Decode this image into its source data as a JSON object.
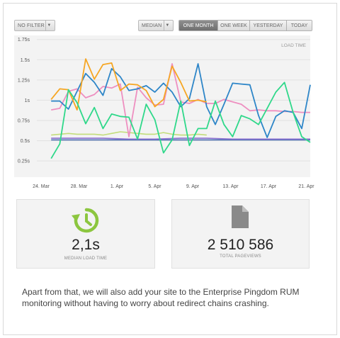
{
  "toolbar": {
    "filter_label": "NO FILTER",
    "median_label": "MEDIAN",
    "time_tabs": [
      {
        "label": "ONE MONTH",
        "active": true
      },
      {
        "label": "ONE WEEK",
        "active": false
      },
      {
        "label": "YESTERDAY",
        "active": false
      },
      {
        "label": "TODAY",
        "active": false
      }
    ]
  },
  "chart_data": {
    "type": "line",
    "title": "LOAD TIME",
    "y_tick_labels": [
      "0.25s",
      "0.5s",
      "0.75s",
      "1s",
      "1.25s",
      "1.5s",
      "1.75s"
    ],
    "ylim": [
      0.05,
      1.8
    ],
    "x_tick_labels": [
      "24. Mar",
      "28. Mar",
      "1. Apr",
      "5. Apr",
      "9. Apr",
      "13. Apr",
      "17. Apr",
      "21. Apr"
    ],
    "xlim": [
      24,
      54
    ],
    "grid": true,
    "series": [
      {
        "color": "#2e86c8",
        "points": [
          [
            25,
            0.99
          ],
          [
            26,
            0.99
          ],
          [
            27,
            0.89
          ],
          [
            29,
            1.33
          ],
          [
            30,
            1.22
          ],
          [
            31,
            1.06
          ],
          [
            32,
            1.39
          ],
          [
            33,
            1.29
          ],
          [
            34,
            1.12
          ],
          [
            35,
            1.14
          ],
          [
            36,
            1.18
          ],
          [
            37,
            1.1
          ],
          [
            38,
            1.21
          ],
          [
            39,
            1.1
          ],
          [
            40,
            0.92
          ],
          [
            41,
            1.02
          ],
          [
            42,
            1.45
          ],
          [
            43,
            0.92
          ],
          [
            44,
            0.7
          ],
          [
            45,
            0.95
          ],
          [
            46,
            1.21
          ],
          [
            47,
            1.2
          ],
          [
            48,
            1.19
          ],
          [
            49,
            0.81
          ],
          [
            50,
            0.54
          ],
          [
            51,
            0.8
          ],
          [
            52,
            0.87
          ],
          [
            53,
            0.85
          ],
          [
            54,
            0.65
          ],
          [
            55,
            1.19
          ]
        ]
      },
      {
        "color": "#f6a623",
        "points": [
          [
            25,
            1.01
          ],
          [
            26,
            1.14
          ],
          [
            27,
            1.13
          ],
          [
            28,
            0.88
          ],
          [
            29,
            1.51
          ],
          [
            30,
            1.26
          ],
          [
            31,
            1.44
          ],
          [
            32,
            1.46
          ],
          [
            33,
            1.12
          ],
          [
            34,
            1.2
          ],
          [
            35,
            1.19
          ],
          [
            36,
            1.12
          ],
          [
            37,
            0.92
          ],
          [
            38,
            1.01
          ],
          [
            39,
            1.42
          ],
          [
            40,
            1.22
          ],
          [
            41,
            0.99
          ],
          [
            42,
            1.0
          ],
          [
            43,
            0.98
          ]
        ]
      },
      {
        "color": "#ee8fc0",
        "points": [
          [
            25,
            0.88
          ],
          [
            26,
            0.9
          ],
          [
            27,
            1.11
          ],
          [
            28,
            1.14
          ],
          [
            29,
            1.03
          ],
          [
            30,
            1.07
          ],
          [
            31,
            1.17
          ],
          [
            32,
            1.15
          ],
          [
            33,
            1.2
          ],
          [
            34,
            0.55
          ],
          [
            35,
            1.16
          ],
          [
            36,
            1.03
          ],
          [
            37,
            0.94
          ],
          [
            38,
            0.95
          ],
          [
            39,
            1.45
          ],
          [
            40,
            0.98
          ],
          [
            41,
            0.96
          ],
          [
            42,
            1.01
          ],
          [
            43,
            0.96
          ],
          [
            44,
            0.96
          ],
          [
            45,
            1.01
          ],
          [
            46,
            0.98
          ],
          [
            47,
            0.95
          ],
          [
            48,
            0.87
          ],
          [
            49,
            0.88
          ],
          [
            50,
            0.87
          ],
          [
            51,
            0.87
          ],
          [
            52,
            0.86
          ],
          [
            53,
            0.86
          ],
          [
            54,
            0.85
          ],
          [
            55,
            0.85
          ]
        ]
      },
      {
        "color": "#2fd88a",
        "points": [
          [
            25,
            0.28
          ],
          [
            26,
            0.46
          ],
          [
            27,
            1.13
          ],
          [
            28,
            0.97
          ],
          [
            29,
            0.71
          ],
          [
            30,
            0.91
          ],
          [
            31,
            0.65
          ],
          [
            32,
            0.83
          ],
          [
            33,
            0.8
          ],
          [
            34,
            0.79
          ],
          [
            35,
            0.52
          ],
          [
            36,
            0.95
          ],
          [
            37,
            0.76
          ],
          [
            38,
            0.35
          ],
          [
            39,
            0.51
          ],
          [
            40,
            0.99
          ],
          [
            41,
            0.44
          ],
          [
            42,
            0.65
          ],
          [
            43,
            0.65
          ],
          [
            44,
            0.99
          ],
          [
            45,
            0.7
          ],
          [
            46,
            0.55
          ],
          [
            47,
            0.81
          ],
          [
            48,
            0.77
          ],
          [
            49,
            0.7
          ],
          [
            50,
            0.9
          ],
          [
            51,
            1.1
          ],
          [
            52,
            1.22
          ],
          [
            53,
            0.85
          ],
          [
            54,
            0.55
          ],
          [
            55,
            0.48
          ]
        ]
      },
      {
        "color": "#c2dd7a",
        "points": [
          [
            25,
            0.57
          ],
          [
            26,
            0.58
          ],
          [
            27,
            0.59
          ],
          [
            28,
            0.58
          ],
          [
            29,
            0.58
          ],
          [
            30,
            0.58
          ],
          [
            31,
            0.57
          ],
          [
            32,
            0.59
          ],
          [
            33,
            0.61
          ],
          [
            34,
            0.6
          ],
          [
            35,
            0.59
          ],
          [
            36,
            0.58
          ],
          [
            37,
            0.58
          ],
          [
            38,
            0.6
          ],
          [
            39,
            0.58
          ],
          [
            40,
            0.57
          ],
          [
            41,
            0.57
          ],
          [
            42,
            0.58
          ],
          [
            43,
            0.57
          ]
        ]
      },
      {
        "color": "#8a6fd0",
        "points": [
          [
            25,
            0.53
          ],
          [
            28,
            0.53
          ],
          [
            31,
            0.53
          ],
          [
            34,
            0.52
          ],
          [
            37,
            0.52
          ],
          [
            40,
            0.53
          ],
          [
            43,
            0.53
          ],
          [
            46,
            0.52
          ],
          [
            49,
            0.52
          ],
          [
            52,
            0.52
          ],
          [
            55,
            0.52
          ]
        ]
      },
      {
        "color": "#4a6fb3",
        "points": [
          [
            25,
            0.51
          ],
          [
            30,
            0.51
          ],
          [
            35,
            0.51
          ],
          [
            40,
            0.51
          ],
          [
            45,
            0.51
          ],
          [
            50,
            0.51
          ],
          [
            55,
            0.51
          ]
        ]
      }
    ]
  },
  "stats": {
    "median_value": "2,1s",
    "median_label": "MEDIAN LOAD TIME",
    "pageviews_value": "2 510 586",
    "pageviews_label": "TOTAL PAGEVIEWS"
  },
  "description": "Apart from that, we will also add your site to the Enterprise Pingdom RUM monitoring without having to worry about redirect chains crashing.",
  "colors": {
    "accent_green": "#8cc63f",
    "doc_icon": "#8a8a8a"
  },
  "icons": {
    "median": "clock-refresh-icon",
    "pageviews": "document-icon"
  }
}
